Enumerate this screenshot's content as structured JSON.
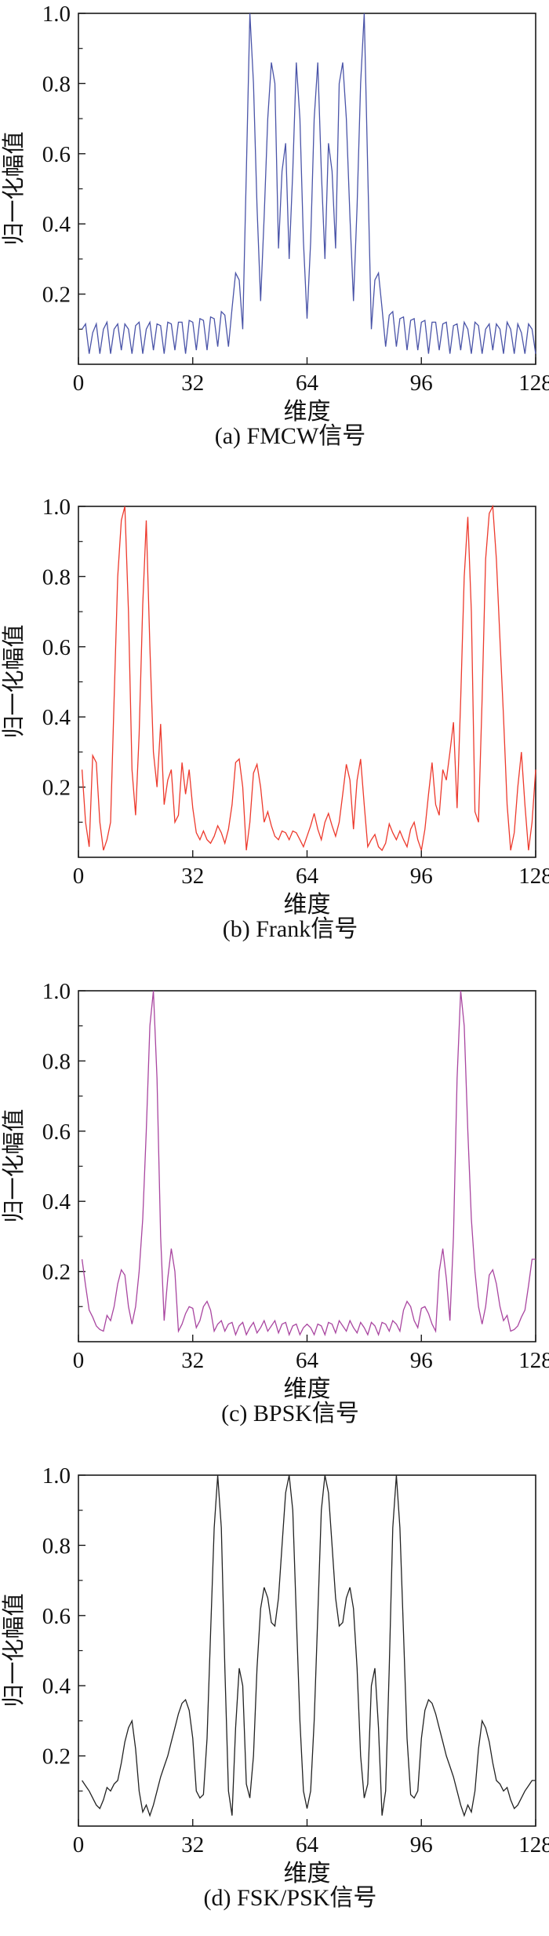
{
  "figure": {
    "y_axis_label": "归一化幅值",
    "x_axis_label": "维度",
    "x_tick_labels": [
      "0",
      "32",
      "64",
      "96",
      "128"
    ],
    "x_tick_values": [
      0,
      32,
      64,
      96,
      128
    ],
    "y_tick_labels": [
      "1.0",
      "0.8",
      "0.6",
      "0.4",
      "0.2"
    ],
    "y_tick_values": [
      1.0,
      0.8,
      0.6,
      0.4,
      0.2
    ],
    "y_minor_tick_values": [
      0.9,
      0.7,
      0.5,
      0.3,
      0.1
    ],
    "axis_color": "#1a1a1a",
    "grid": "off",
    "legend": "none"
  },
  "chart_data": [
    {
      "type": "line",
      "name": "FMCW信号",
      "caption": "(a) FMCW信号",
      "color": "#4a54a8",
      "xlabel": "维度",
      "ylabel": "归一化幅值",
      "xlim": [
        0,
        128
      ],
      "ylim": [
        0,
        1.0
      ],
      "x_start": 1,
      "x_step": 1,
      "values": [
        0.1,
        0.115,
        0.03,
        0.09,
        0.115,
        0.03,
        0.1,
        0.12,
        0.03,
        0.1,
        0.115,
        0.04,
        0.115,
        0.1,
        0.03,
        0.11,
        0.12,
        0.03,
        0.1,
        0.12,
        0.04,
        0.115,
        0.11,
        0.03,
        0.12,
        0.115,
        0.04,
        0.12,
        0.12,
        0.03,
        0.125,
        0.12,
        0.04,
        0.13,
        0.125,
        0.04,
        0.135,
        0.13,
        0.05,
        0.15,
        0.14,
        0.05,
        0.16,
        0.26,
        0.24,
        0.1,
        0.55,
        1.0,
        0.8,
        0.45,
        0.18,
        0.42,
        0.7,
        0.86,
        0.8,
        0.33,
        0.55,
        0.63,
        0.3,
        0.55,
        0.86,
        0.7,
        0.35,
        0.13,
        0.35,
        0.7,
        0.86,
        0.55,
        0.3,
        0.63,
        0.55,
        0.33,
        0.8,
        0.86,
        0.7,
        0.42,
        0.18,
        0.45,
        0.8,
        1.0,
        0.55,
        0.1,
        0.24,
        0.26,
        0.16,
        0.05,
        0.14,
        0.15,
        0.05,
        0.13,
        0.135,
        0.04,
        0.125,
        0.13,
        0.04,
        0.12,
        0.125,
        0.03,
        0.12,
        0.12,
        0.04,
        0.115,
        0.12,
        0.03,
        0.11,
        0.115,
        0.04,
        0.12,
        0.1,
        0.03,
        0.12,
        0.11,
        0.03,
        0.1,
        0.115,
        0.04,
        0.115,
        0.1,
        0.03,
        0.12,
        0.1,
        0.03,
        0.115,
        0.09,
        0.03,
        0.115,
        0.1,
        0.03
      ]
    },
    {
      "type": "line",
      "name": "Frank信号",
      "caption": "(b) Frank信号",
      "color": "#ed3a2d",
      "xlabel": "维度",
      "ylabel": "归一化幅值",
      "xlim": [
        0,
        128
      ],
      "ylim": [
        0,
        1.0
      ],
      "x_start": 1,
      "x_step": 1,
      "values": [
        0.25,
        0.1,
        0.03,
        0.29,
        0.27,
        0.1,
        0.02,
        0.05,
        0.1,
        0.45,
        0.8,
        0.96,
        1.0,
        0.7,
        0.25,
        0.12,
        0.35,
        0.72,
        0.96,
        0.6,
        0.3,
        0.2,
        0.38,
        0.15,
        0.22,
        0.25,
        0.1,
        0.12,
        0.27,
        0.18,
        0.25,
        0.14,
        0.07,
        0.05,
        0.075,
        0.05,
        0.04,
        0.06,
        0.09,
        0.07,
        0.04,
        0.08,
        0.15,
        0.27,
        0.28,
        0.2,
        0.02,
        0.1,
        0.24,
        0.265,
        0.2,
        0.1,
        0.13,
        0.09,
        0.06,
        0.05,
        0.075,
        0.07,
        0.05,
        0.075,
        0.07,
        0.05,
        0.03,
        0.06,
        0.09,
        0.125,
        0.08,
        0.05,
        0.1,
        0.125,
        0.09,
        0.06,
        0.1,
        0.18,
        0.265,
        0.22,
        0.08,
        0.22,
        0.28,
        0.15,
        0.03,
        0.05,
        0.065,
        0.03,
        0.02,
        0.04,
        0.095,
        0.07,
        0.05,
        0.075,
        0.05,
        0.03,
        0.08,
        0.1,
        0.05,
        0.02,
        0.08,
        0.18,
        0.27,
        0.15,
        0.12,
        0.25,
        0.22,
        0.3,
        0.385,
        0.14,
        0.45,
        0.8,
        0.97,
        0.7,
        0.13,
        0.1,
        0.45,
        0.85,
        0.98,
        1.0,
        0.85,
        0.62,
        0.4,
        0.15,
        0.02,
        0.07,
        0.2,
        0.3,
        0.15,
        0.02,
        0.1,
        0.25
      ]
    },
    {
      "type": "line",
      "name": "BPSK信号",
      "caption": "(c) BPSK信号",
      "color": "#a946a0",
      "xlabel": "维度",
      "ylabel": "归一化幅值",
      "xlim": [
        0,
        128
      ],
      "ylim": [
        0,
        1.0
      ],
      "x_start": 1,
      "x_step": 1,
      "values": [
        0.235,
        0.16,
        0.09,
        0.07,
        0.045,
        0.035,
        0.03,
        0.075,
        0.06,
        0.1,
        0.165,
        0.205,
        0.19,
        0.1,
        0.05,
        0.1,
        0.2,
        0.35,
        0.6,
        0.9,
        1.0,
        0.75,
        0.3,
        0.06,
        0.18,
        0.265,
        0.2,
        0.03,
        0.05,
        0.08,
        0.1,
        0.095,
        0.04,
        0.06,
        0.1,
        0.115,
        0.09,
        0.03,
        0.05,
        0.06,
        0.03,
        0.05,
        0.055,
        0.02,
        0.045,
        0.055,
        0.02,
        0.04,
        0.055,
        0.025,
        0.04,
        0.06,
        0.03,
        0.045,
        0.06,
        0.025,
        0.05,
        0.055,
        0.02,
        0.045,
        0.05,
        0.02,
        0.04,
        0.05,
        0.04,
        0.02,
        0.05,
        0.045,
        0.02,
        0.055,
        0.05,
        0.025,
        0.06,
        0.045,
        0.03,
        0.06,
        0.04,
        0.025,
        0.055,
        0.04,
        0.02,
        0.055,
        0.045,
        0.02,
        0.055,
        0.05,
        0.03,
        0.06,
        0.05,
        0.03,
        0.09,
        0.115,
        0.1,
        0.06,
        0.04,
        0.095,
        0.1,
        0.08,
        0.05,
        0.03,
        0.2,
        0.265,
        0.18,
        0.06,
        0.3,
        0.75,
        1.0,
        0.9,
        0.6,
        0.35,
        0.2,
        0.1,
        0.05,
        0.1,
        0.19,
        0.205,
        0.165,
        0.1,
        0.06,
        0.075,
        0.03,
        0.035,
        0.045,
        0.07,
        0.09,
        0.16,
        0.235,
        0.235
      ]
    },
    {
      "type": "line",
      "name": "FSK/PSK信号",
      "caption": "(d) FSK/PSK信号",
      "color": "#222222",
      "xlabel": "维度",
      "ylabel": "归一化幅值",
      "xlim": [
        0,
        128
      ],
      "ylim": [
        0,
        1.0
      ],
      "x_start": 1,
      "x_step": 1,
      "values": [
        0.13,
        0.115,
        0.1,
        0.08,
        0.06,
        0.05,
        0.075,
        0.11,
        0.1,
        0.12,
        0.13,
        0.18,
        0.24,
        0.28,
        0.3,
        0.22,
        0.1,
        0.04,
        0.06,
        0.03,
        0.06,
        0.1,
        0.14,
        0.17,
        0.2,
        0.24,
        0.28,
        0.32,
        0.35,
        0.36,
        0.33,
        0.25,
        0.1,
        0.08,
        0.09,
        0.25,
        0.55,
        0.85,
        1.0,
        0.85,
        0.45,
        0.1,
        0.03,
        0.28,
        0.45,
        0.4,
        0.12,
        0.08,
        0.2,
        0.45,
        0.62,
        0.68,
        0.65,
        0.58,
        0.57,
        0.65,
        0.8,
        0.95,
        1.0,
        0.9,
        0.6,
        0.3,
        0.1,
        0.05,
        0.1,
        0.3,
        0.6,
        0.9,
        1.0,
        0.95,
        0.8,
        0.65,
        0.57,
        0.58,
        0.65,
        0.68,
        0.62,
        0.45,
        0.2,
        0.08,
        0.12,
        0.4,
        0.45,
        0.28,
        0.03,
        0.1,
        0.45,
        0.85,
        1.0,
        0.85,
        0.55,
        0.25,
        0.09,
        0.08,
        0.1,
        0.25,
        0.33,
        0.36,
        0.35,
        0.32,
        0.28,
        0.24,
        0.2,
        0.17,
        0.14,
        0.1,
        0.06,
        0.03,
        0.06,
        0.04,
        0.1,
        0.22,
        0.3,
        0.28,
        0.24,
        0.18,
        0.13,
        0.12,
        0.1,
        0.11,
        0.075,
        0.05,
        0.06,
        0.08,
        0.1,
        0.115,
        0.13,
        0.13
      ]
    }
  ]
}
